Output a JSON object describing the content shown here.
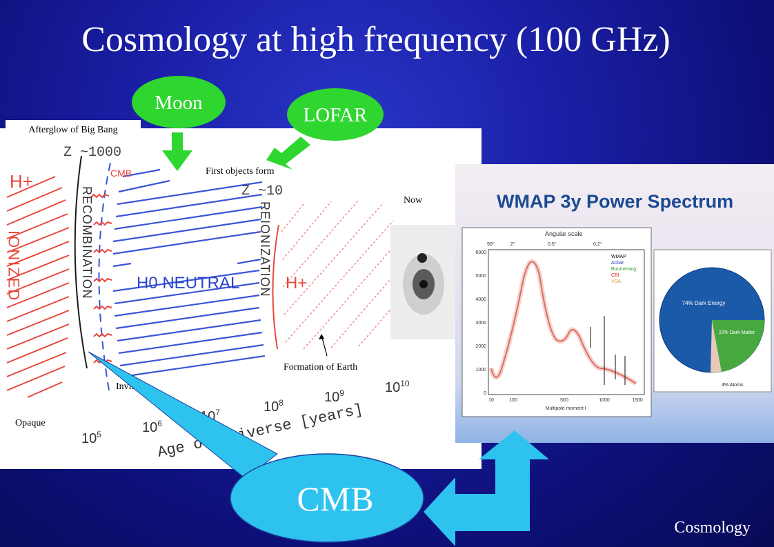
{
  "slide": {
    "title": "Cosmology at high frequency (100 GHz)",
    "footer": "Cosmology"
  },
  "callouts": {
    "moon": "Moon",
    "lofar": "LOFAR",
    "cmb": "CMB"
  },
  "timeline": {
    "afterglow": "Afterglow of Big Bang",
    "first_objects": "First objects form",
    "now": "Now",
    "formation_earth": "Formation of Earth",
    "invisible": "Invisible",
    "opaque": "Opaque",
    "z_1000": "Z ~1000",
    "z_10": "Z ~10",
    "cmb_small": "CMB",
    "h_plus_left": "H+",
    "h_plus_right": "H+",
    "h0_neutral": "H0 NEUTRAL",
    "ionized": "IONIZED",
    "recombination": "RECOMBINATION",
    "reionization": "REIONIZATION",
    "age_label": "Age of Universe [years]",
    "ticks": [
      "10^5",
      "10^6",
      "10^7",
      "10^8",
      "10^9",
      "10^10"
    ]
  },
  "wmap": {
    "title": "WMAP 3y Power Spectrum",
    "angular_scale": "Angular scale",
    "angles": [
      "90°",
      "2°",
      "0.5°",
      "0.2°"
    ],
    "yaxis_ticks": [
      "6000",
      "5000",
      "4000",
      "3000",
      "2000",
      "1000",
      "0"
    ],
    "xaxis_ticks": [
      "10",
      "100",
      "500",
      "1000",
      "1500"
    ],
    "xlabel": "Multipole moment l",
    "legend": [
      "WMAP",
      "Acbar",
      "Boomerang",
      "CBI",
      "VSA"
    ],
    "legend_colors": [
      "#000000",
      "#1c3fbf",
      "#2a9a2a",
      "#d01e1e",
      "#e0a020"
    ],
    "pie": {
      "dark_energy": "74% Dark Energy",
      "dark_matter": "22% Dark Matter",
      "atoms": "4% Atoms",
      "dark_energy_pct": 74,
      "dark_matter_pct": 22,
      "atoms_pct": 4
    }
  }
}
